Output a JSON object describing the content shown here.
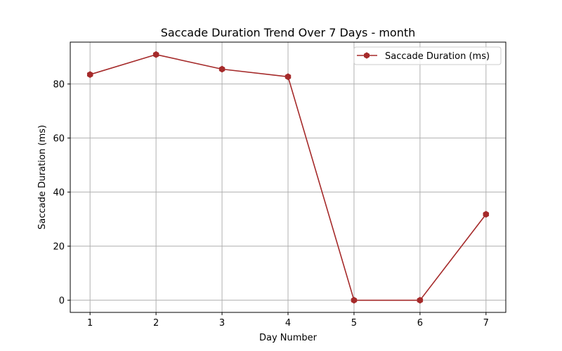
{
  "chart_data": {
    "type": "line",
    "title": "Saccade Duration Trend Over 7 Days - month",
    "xlabel": "Day Number",
    "ylabel": "Saccade Duration (ms)",
    "x": [
      1,
      2,
      3,
      4,
      5,
      6,
      7
    ],
    "series": [
      {
        "name": "Saccade Duration (ms)",
        "values": [
          83.5,
          90.9,
          85.5,
          82.7,
          0,
          0,
          31.8
        ],
        "color": "#a52a2a",
        "marker": "hexagon"
      }
    ],
    "xlim": [
      0.7,
      7.3
    ],
    "ylim": [
      -4.5,
      95.5
    ],
    "xticks": [
      1,
      2,
      3,
      4,
      5,
      6,
      7
    ],
    "yticks": [
      0,
      20,
      40,
      60,
      80
    ],
    "grid": true,
    "legend_position": "top-right"
  }
}
